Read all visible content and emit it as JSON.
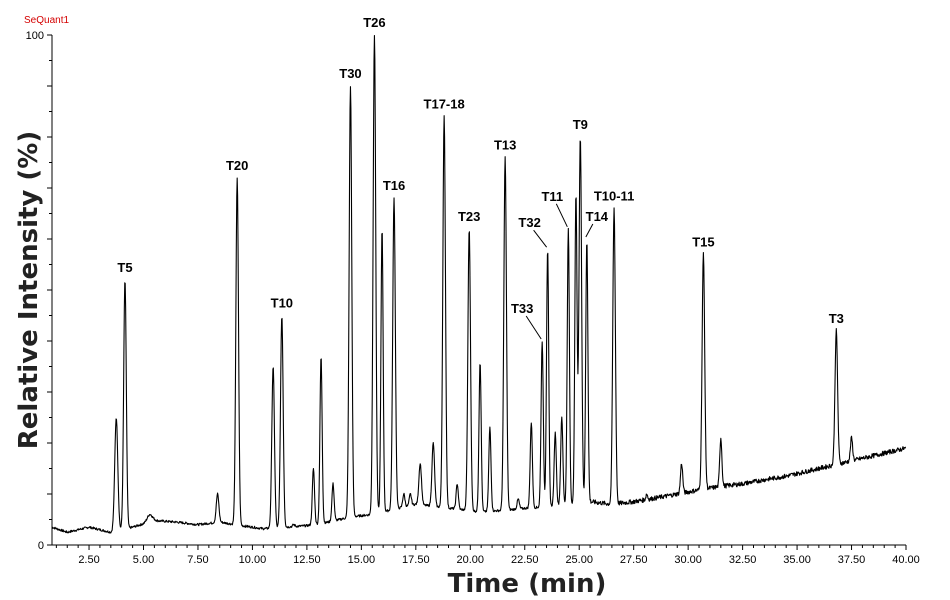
{
  "brand": "SeQuant1",
  "chart_data": {
    "type": "line",
    "title": "",
    "xlabel": "Time (min)",
    "ylabel": "Relative Intensity (%)",
    "xlim": [
      0.8,
      40.0
    ],
    "ylim": [
      0,
      100
    ],
    "grid": false,
    "xticks": [
      2.5,
      5.0,
      7.5,
      10.0,
      12.5,
      15.0,
      17.5,
      20.0,
      22.5,
      25.0,
      27.5,
      30.0,
      32.5,
      35.0,
      37.5,
      40.0
    ],
    "xtick_labels": [
      "2.50",
      "5.00",
      "7.50",
      "10.00",
      "12.50",
      "15.00",
      "17.50",
      "20.00",
      "22.50",
      "25.00",
      "27.50",
      "30.00",
      "32.50",
      "35.00",
      "37.50",
      "40.00"
    ],
    "yticks": [
      0,
      100
    ],
    "ytick_labels": [
      "0",
      "100"
    ],
    "baseline": [
      [
        0.8,
        3.5
      ],
      [
        1.5,
        2.5
      ],
      [
        2.5,
        3.5
      ],
      [
        3.5,
        2.5
      ],
      [
        4.5,
        3.5
      ],
      [
        5.5,
        4.8
      ],
      [
        6.5,
        4.5
      ],
      [
        7.5,
        4.0
      ],
      [
        8.5,
        4.5
      ],
      [
        9.5,
        3.8
      ],
      [
        10.5,
        3.2
      ],
      [
        11.5,
        3.5
      ],
      [
        12.5,
        3.8
      ],
      [
        13.5,
        4.5
      ],
      [
        14.5,
        5.5
      ],
      [
        15.5,
        6.0
      ],
      [
        16.5,
        7.0
      ],
      [
        17.5,
        8.0
      ],
      [
        18.5,
        7.5
      ],
      [
        19.5,
        7.0
      ],
      [
        20.5,
        6.5
      ],
      [
        21.5,
        6.8
      ],
      [
        22.5,
        7.2
      ],
      [
        23.5,
        7.5
      ],
      [
        24.5,
        8.0
      ],
      [
        25.5,
        8.5
      ],
      [
        26.5,
        8.0
      ],
      [
        27.5,
        8.5
      ],
      [
        28.5,
        9.2
      ],
      [
        29.5,
        10.0
      ],
      [
        30.5,
        10.8
      ],
      [
        31.5,
        11.5
      ],
      [
        32.5,
        12.0
      ],
      [
        33.5,
        12.8
      ],
      [
        34.5,
        13.5
      ],
      [
        35.5,
        14.5
      ],
      [
        36.5,
        15.5
      ],
      [
        37.5,
        16.5
      ],
      [
        38.5,
        17.5
      ],
      [
        39.5,
        18.5
      ],
      [
        40.0,
        19.0
      ]
    ],
    "peaks": [
      {
        "label": "",
        "rt": 3.75,
        "height": 25.0,
        "width": 0.07
      },
      {
        "label": "T5",
        "rt": 4.15,
        "height": 52.0,
        "width": 0.06
      },
      {
        "label": "",
        "rt": 5.3,
        "height": 6.0,
        "width": 0.12
      },
      {
        "label": "",
        "rt": 8.4,
        "height": 10.0,
        "width": 0.06
      },
      {
        "label": "T20",
        "rt": 9.3,
        "height": 72.0,
        "width": 0.06
      },
      {
        "label": "",
        "rt": 10.95,
        "height": 35.0,
        "width": 0.06
      },
      {
        "label": "T10",
        "rt": 11.35,
        "height": 45.0,
        "width": 0.06
      },
      {
        "label": "",
        "rt": 11.9,
        "height": 4.0,
        "width": 0.05
      },
      {
        "label": "",
        "rt": 12.8,
        "height": 15.0,
        "width": 0.05
      },
      {
        "label": "",
        "rt": 13.15,
        "height": 37.0,
        "width": 0.05
      },
      {
        "label": "",
        "rt": 13.7,
        "height": 12.0,
        "width": 0.05
      },
      {
        "label": "T30",
        "rt": 14.5,
        "height": 90.0,
        "width": 0.06
      },
      {
        "label": "T26",
        "rt": 15.6,
        "height": 100.0,
        "width": 0.06
      },
      {
        "label": "",
        "rt": 15.95,
        "height": 62.0,
        "width": 0.05
      },
      {
        "label": "T16",
        "rt": 16.5,
        "height": 68.0,
        "width": 0.06
      },
      {
        "label": "",
        "rt": 16.95,
        "height": 10.0,
        "width": 0.05
      },
      {
        "label": "",
        "rt": 17.25,
        "height": 10.0,
        "width": 0.05
      },
      {
        "label": "",
        "rt": 17.7,
        "height": 16.0,
        "width": 0.06
      },
      {
        "label": "",
        "rt": 18.3,
        "height": 20.0,
        "width": 0.06
      },
      {
        "label": "T17-18",
        "rt": 18.8,
        "height": 84.0,
        "width": 0.06
      },
      {
        "label": "",
        "rt": 19.4,
        "height": 12.0,
        "width": 0.05
      },
      {
        "label": "T23",
        "rt": 19.95,
        "height": 62.0,
        "width": 0.06
      },
      {
        "label": "",
        "rt": 20.45,
        "height": 36.0,
        "width": 0.05
      },
      {
        "label": "",
        "rt": 20.9,
        "height": 23.0,
        "width": 0.05
      },
      {
        "label": "T13",
        "rt": 21.6,
        "height": 76.0,
        "width": 0.06
      },
      {
        "label": "",
        "rt": 22.2,
        "height": 9.0,
        "width": 0.05
      },
      {
        "label": "",
        "rt": 22.8,
        "height": 24.0,
        "width": 0.05
      },
      {
        "label": "T33",
        "rt": 23.3,
        "height": 40.0,
        "width": 0.05
      },
      {
        "label": "T32",
        "rt": 23.55,
        "height": 58.0,
        "width": 0.05
      },
      {
        "label": "",
        "rt": 23.9,
        "height": 22.0,
        "width": 0.05
      },
      {
        "label": "",
        "rt": 24.2,
        "height": 25.0,
        "width": 0.05
      },
      {
        "label": "T11",
        "rt": 24.5,
        "height": 62.0,
        "width": 0.05
      },
      {
        "label": "",
        "rt": 24.85,
        "height": 69.0,
        "width": 0.05
      },
      {
        "label": "T9",
        "rt": 25.05,
        "height": 80.0,
        "width": 0.06
      },
      {
        "label": "T14",
        "rt": 25.35,
        "height": 60.0,
        "width": 0.05
      },
      {
        "label": "T10-11",
        "rt": 26.6,
        "height": 66.0,
        "width": 0.06
      },
      {
        "label": "",
        "rt": 28.1,
        "height": 10.0,
        "width": 0.04
      },
      {
        "label": "",
        "rt": 29.7,
        "height": 16.0,
        "width": 0.05
      },
      {
        "label": "T15",
        "rt": 30.7,
        "height": 57.0,
        "width": 0.06
      },
      {
        "label": "",
        "rt": 31.5,
        "height": 21.0,
        "width": 0.05
      },
      {
        "label": "T3",
        "rt": 36.8,
        "height": 42.0,
        "width": 0.06
      },
      {
        "label": "",
        "rt": 37.5,
        "height": 21.0,
        "width": 0.05
      }
    ]
  }
}
